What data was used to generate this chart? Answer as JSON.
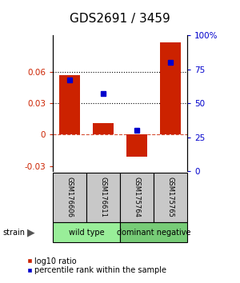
{
  "title": "GDS2691 / 3459",
  "samples": [
    "GSM176606",
    "GSM176611",
    "GSM175764",
    "GSM175765"
  ],
  "log10_ratio": [
    0.057,
    0.011,
    -0.021,
    0.088
  ],
  "percentile_rank": [
    67,
    57,
    30,
    80
  ],
  "groups": [
    {
      "label": "wild type",
      "samples": [
        0,
        1
      ],
      "color": "#99EE99"
    },
    {
      "label": "dominant negative",
      "samples": [
        2,
        3
      ],
      "color": "#77CC77"
    }
  ],
  "ylim_left": [
    -0.035,
    0.095
  ],
  "ylim_right": [
    0,
    100
  ],
  "yticks_left": [
    -0.03,
    0,
    0.03,
    0.06
  ],
  "yticks_right": [
    0,
    25,
    50,
    75,
    100
  ],
  "hlines_dotted": [
    0.03,
    0.06
  ],
  "hline_dashed": 0,
  "bar_color": "#CC2200",
  "dot_color": "#0000CC",
  "bar_width": 0.6,
  "left_tick_color": "#CC2200",
  "right_tick_color": "#0000CC",
  "title_fontsize": 11,
  "tick_fontsize": 7.5,
  "legend_fontsize": 7
}
